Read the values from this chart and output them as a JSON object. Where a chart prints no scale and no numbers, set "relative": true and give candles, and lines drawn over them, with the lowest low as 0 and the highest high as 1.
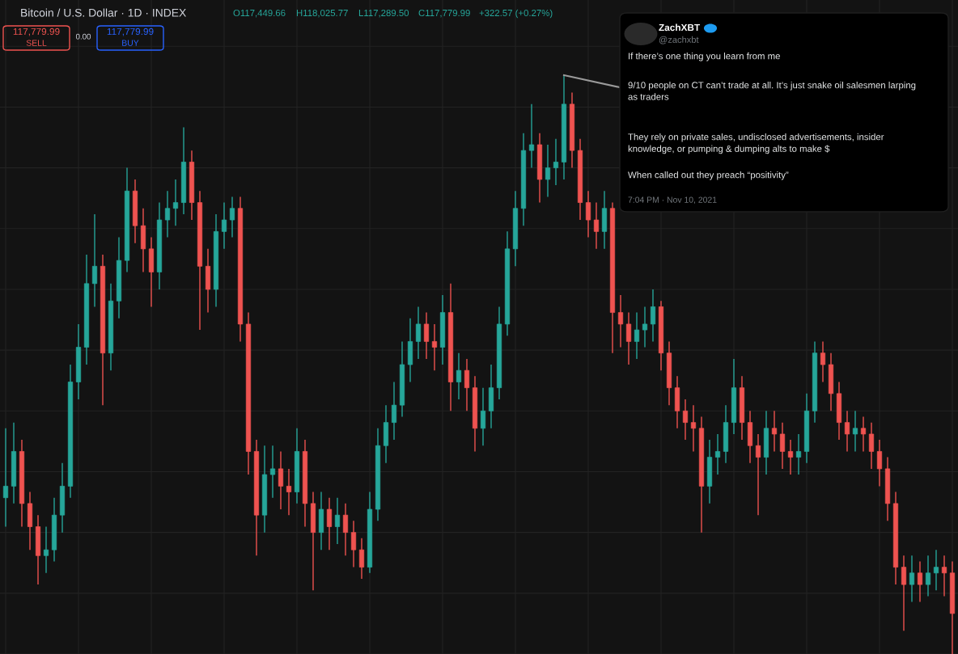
{
  "chart_data": {
    "type": "candlestick",
    "relative": true,
    "title": "Bitcoin / U.S. Dollar · 1D · INDEX",
    "categories": [
      null,
      null,
      null,
      null,
      null,
      null,
      null,
      null,
      null,
      null,
      null,
      null,
      null,
      null,
      null,
      null,
      null,
      null,
      null,
      null,
      null,
      null,
      null,
      null,
      null,
      null,
      null,
      null,
      null,
      null,
      null,
      null,
      null,
      null,
      null,
      null,
      null,
      null,
      null,
      null,
      null,
      null,
      null,
      null,
      null,
      null,
      null,
      null,
      null,
      null,
      null,
      null,
      null,
      null,
      null,
      null,
      null,
      null,
      null,
      null,
      null,
      null,
      null,
      null,
      null,
      null,
      null,
      null,
      null,
      null,
      null,
      null,
      null,
      null,
      null,
      null,
      null,
      null,
      null,
      null,
      null,
      null,
      null,
      null,
      null,
      null,
      null,
      null,
      null,
      null,
      null,
      null,
      null,
      null,
      null,
      null,
      null,
      null,
      null,
      null,
      null,
      null,
      null,
      null,
      null,
      null,
      null,
      null,
      null,
      null,
      null,
      null,
      null,
      null,
      null,
      null,
      null,
      null
    ],
    "ohlc": [
      [
        0.27,
        0.39,
        0.22,
        0.29
      ],
      [
        0.29,
        0.4,
        0.26,
        0.35
      ],
      [
        0.35,
        0.37,
        0.22,
        0.26
      ],
      [
        0.26,
        0.28,
        0.18,
        0.22
      ],
      [
        0.22,
        0.24,
        0.12,
        0.17
      ],
      [
        0.17,
        0.22,
        0.14,
        0.18
      ],
      [
        0.18,
        0.27,
        0.16,
        0.24
      ],
      [
        0.24,
        0.33,
        0.21,
        0.29
      ],
      [
        0.29,
        0.5,
        0.27,
        0.47
      ],
      [
        0.47,
        0.57,
        0.44,
        0.53
      ],
      [
        0.53,
        0.69,
        0.5,
        0.64
      ],
      [
        0.64,
        0.76,
        0.6,
        0.67
      ],
      [
        0.67,
        0.69,
        0.43,
        0.52
      ],
      [
        0.52,
        0.64,
        0.49,
        0.61
      ],
      [
        0.61,
        0.72,
        0.58,
        0.68
      ],
      [
        0.68,
        0.84,
        0.66,
        0.8
      ],
      [
        0.8,
        0.82,
        0.71,
        0.74
      ],
      [
        0.74,
        0.77,
        0.66,
        0.7
      ],
      [
        0.7,
        0.72,
        0.6,
        0.66
      ],
      [
        0.66,
        0.78,
        0.63,
        0.75
      ],
      [
        0.75,
        0.8,
        0.72,
        0.77
      ],
      [
        0.77,
        0.82,
        0.74,
        0.78
      ],
      [
        0.78,
        0.91,
        0.76,
        0.85
      ],
      [
        0.85,
        0.87,
        0.75,
        0.78
      ],
      [
        0.78,
        0.8,
        0.56,
        0.67
      ],
      [
        0.67,
        0.7,
        0.59,
        0.63
      ],
      [
        0.63,
        0.76,
        0.6,
        0.73
      ],
      [
        0.73,
        0.78,
        0.7,
        0.75
      ],
      [
        0.75,
        0.79,
        0.72,
        0.77
      ],
      [
        0.77,
        0.79,
        0.54,
        0.57
      ],
      [
        0.57,
        0.59,
        0.31,
        0.35
      ],
      [
        0.35,
        0.37,
        0.17,
        0.24
      ],
      [
        0.24,
        0.36,
        0.21,
        0.31
      ],
      [
        0.31,
        0.36,
        0.27,
        0.32
      ],
      [
        0.32,
        0.35,
        0.25,
        0.29
      ],
      [
        0.29,
        0.32,
        0.24,
        0.28
      ],
      [
        0.28,
        0.39,
        0.26,
        0.35
      ],
      [
        0.35,
        0.37,
        0.22,
        0.26
      ],
      [
        0.26,
        0.28,
        0.11,
        0.21
      ],
      [
        0.21,
        0.28,
        0.18,
        0.25
      ],
      [
        0.25,
        0.27,
        0.18,
        0.22
      ],
      [
        0.22,
        0.27,
        0.19,
        0.24
      ],
      [
        0.24,
        0.26,
        0.17,
        0.21
      ],
      [
        0.21,
        0.23,
        0.15,
        0.18
      ],
      [
        0.18,
        0.2,
        0.13,
        0.15
      ],
      [
        0.15,
        0.28,
        0.14,
        0.25
      ],
      [
        0.25,
        0.39,
        0.23,
        0.36
      ],
      [
        0.36,
        0.43,
        0.33,
        0.4
      ],
      [
        0.4,
        0.47,
        0.37,
        0.43
      ],
      [
        0.43,
        0.54,
        0.41,
        0.5
      ],
      [
        0.5,
        0.58,
        0.47,
        0.54
      ],
      [
        0.54,
        0.6,
        0.51,
        0.57
      ],
      [
        0.57,
        0.59,
        0.51,
        0.54
      ],
      [
        0.54,
        0.57,
        0.49,
        0.53
      ],
      [
        0.53,
        0.62,
        0.5,
        0.59
      ],
      [
        0.59,
        0.64,
        0.42,
        0.47
      ],
      [
        0.47,
        0.52,
        0.44,
        0.49
      ],
      [
        0.49,
        0.51,
        0.42,
        0.46
      ],
      [
        0.46,
        0.48,
        0.35,
        0.39
      ],
      [
        0.39,
        0.46,
        0.36,
        0.42
      ],
      [
        0.42,
        0.5,
        0.39,
        0.46
      ],
      [
        0.46,
        0.6,
        0.44,
        0.57
      ],
      [
        0.57,
        0.73,
        0.55,
        0.7
      ],
      [
        0.7,
        0.8,
        0.67,
        0.77
      ],
      [
        0.77,
        0.9,
        0.74,
        0.87
      ],
      [
        0.87,
        0.95,
        0.84,
        0.88
      ],
      [
        0.88,
        0.9,
        0.78,
        0.82
      ],
      [
        0.82,
        0.88,
        0.79,
        0.84
      ],
      [
        0.84,
        0.89,
        0.81,
        0.85
      ],
      [
        0.85,
        1.0,
        0.82,
        0.95
      ],
      [
        0.95,
        0.97,
        0.84,
        0.87
      ],
      [
        0.87,
        0.89,
        0.75,
        0.78
      ],
      [
        0.78,
        0.8,
        0.72,
        0.75
      ],
      [
        0.75,
        0.78,
        0.7,
        0.73
      ],
      [
        0.73,
        0.8,
        0.7,
        0.77
      ],
      [
        0.77,
        0.78,
        0.52,
        0.59
      ],
      [
        0.59,
        0.62,
        0.53,
        0.57
      ],
      [
        0.57,
        0.59,
        0.5,
        0.54
      ],
      [
        0.54,
        0.59,
        0.51,
        0.56
      ],
      [
        0.56,
        0.6,
        0.53,
        0.57
      ],
      [
        0.57,
        0.63,
        0.54,
        0.6
      ],
      [
        0.6,
        0.61,
        0.49,
        0.52
      ],
      [
        0.52,
        0.54,
        0.43,
        0.46
      ],
      [
        0.46,
        0.48,
        0.39,
        0.42
      ],
      [
        0.42,
        0.44,
        0.37,
        0.4
      ],
      [
        0.4,
        0.43,
        0.35,
        0.39
      ],
      [
        0.39,
        0.41,
        0.21,
        0.29
      ],
      [
        0.29,
        0.37,
        0.26,
        0.34
      ],
      [
        0.34,
        0.38,
        0.31,
        0.35
      ],
      [
        0.35,
        0.43,
        0.33,
        0.4
      ],
      [
        0.4,
        0.51,
        0.38,
        0.46
      ],
      [
        0.46,
        0.48,
        0.37,
        0.4
      ],
      [
        0.4,
        0.42,
        0.33,
        0.36
      ],
      [
        0.36,
        0.38,
        0.24,
        0.34
      ],
      [
        0.34,
        0.42,
        0.31,
        0.39
      ],
      [
        0.39,
        0.42,
        0.35,
        0.38
      ],
      [
        0.38,
        0.4,
        0.32,
        0.35
      ],
      [
        0.35,
        0.37,
        0.31,
        0.34
      ],
      [
        0.34,
        0.38,
        0.31,
        0.35
      ],
      [
        0.35,
        0.45,
        0.33,
        0.42
      ],
      [
        0.42,
        0.54,
        0.4,
        0.52
      ],
      [
        0.52,
        0.54,
        0.47,
        0.5
      ],
      [
        0.5,
        0.52,
        0.42,
        0.45
      ],
      [
        0.45,
        0.47,
        0.37,
        0.4
      ],
      [
        0.4,
        0.42,
        0.35,
        0.38
      ],
      [
        0.38,
        0.42,
        0.35,
        0.39
      ],
      [
        0.39,
        0.41,
        0.35,
        0.38
      ],
      [
        0.38,
        0.4,
        0.32,
        0.35
      ],
      [
        0.35,
        0.37,
        0.29,
        0.32
      ],
      [
        0.32,
        0.34,
        0.23,
        0.26
      ],
      [
        0.26,
        0.28,
        0.12,
        0.15
      ],
      [
        0.15,
        0.17,
        0.04,
        0.12
      ],
      [
        0.12,
        0.17,
        0.09,
        0.14
      ],
      [
        0.14,
        0.16,
        0.09,
        0.12
      ],
      [
        0.12,
        0.17,
        0.1,
        0.14
      ],
      [
        0.14,
        0.18,
        0.11,
        0.15
      ],
      [
        0.15,
        0.17,
        0.1,
        0.14
      ],
      [
        0.14,
        0.16,
        0.0,
        0.07
      ]
    ],
    "colors": [
      "#26a69a",
      "#26a69a",
      "#ef5350",
      "#ef5350",
      "#ef5350",
      "#26a69a",
      "#26a69a",
      "#26a69a",
      "#26a69a",
      "#26a69a",
      "#26a69a",
      "#26a69a",
      "#ef5350",
      "#26a69a",
      "#26a69a",
      "#26a69a",
      "#ef5350",
      "#ef5350",
      "#ef5350",
      "#26a69a",
      "#26a69a",
      "#26a69a",
      "#26a69a",
      "#ef5350",
      "#ef5350",
      "#ef5350",
      "#26a69a",
      "#26a69a",
      "#26a69a",
      "#ef5350",
      "#ef5350",
      "#ef5350",
      "#26a69a",
      "#26a69a",
      "#ef5350",
      "#ef5350",
      "#26a69a",
      "#ef5350",
      "#ef5350",
      "#26a69a",
      "#ef5350",
      "#26a69a",
      "#ef5350",
      "#ef5350",
      "#ef5350",
      "#26a69a",
      "#26a69a",
      "#26a69a",
      "#26a69a",
      "#26a69a",
      "#26a69a",
      "#26a69a",
      "#ef5350",
      "#ef5350",
      "#26a69a",
      "#ef5350",
      "#26a69a",
      "#ef5350",
      "#ef5350",
      "#26a69a",
      "#26a69a",
      "#26a69a",
      "#26a69a",
      "#26a69a",
      "#26a69a",
      "#26a69a",
      "#ef5350",
      "#26a69a",
      "#26a69a",
      "#26a69a",
      "#ef5350",
      "#ef5350",
      "#ef5350",
      "#ef5350",
      "#26a69a",
      "#ef5350",
      "#ef5350",
      "#ef5350",
      "#26a69a",
      "#26a69a",
      "#26a69a",
      "#ef5350",
      "#ef5350",
      "#ef5350",
      "#ef5350",
      "#ef5350",
      "#ef5350",
      "#26a69a",
      "#26a69a",
      "#26a69a",
      "#26a69a",
      "#ef5350",
      "#ef5350",
      "#ef5350",
      "#26a69a",
      "#ef5350",
      "#ef5350",
      "#ef5350",
      "#26a69a",
      "#26a69a",
      "#26a69a",
      "#ef5350",
      "#ef5350",
      "#ef5350",
      "#ef5350",
      "#26a69a",
      "#ef5350",
      "#ef5350",
      "#ef5350",
      "#ef5350",
      "#ef5350",
      "#ef5350",
      "#26a69a",
      "#ef5350",
      "#26a69a",
      "#26a69a",
      "#ef5350",
      "#ef5350"
    ],
    "grid": true,
    "annotations": [
      "O117,449.66",
      "H118,025.77",
      "L117,289.50",
      "C117,779.99",
      "+322.57 (+0.27%)",
      "117,779.99",
      "SELL",
      "0.00",
      "117,779.99",
      "BUY",
      "ZachXBT",
      "@zachxbt",
      "If there’s one thing you learn from me",
      "9/10 people on CT can’t trade at all. It’s just snake oil salesmen larping\nas traders",
      "They rely on private sales, undisclosed advertisements, insider\nknowledge, or pumping & dumping alts to make $",
      "When called out they preach “positivity”",
      "7:04 PM · Nov 10, 2021"
    ]
  }
}
